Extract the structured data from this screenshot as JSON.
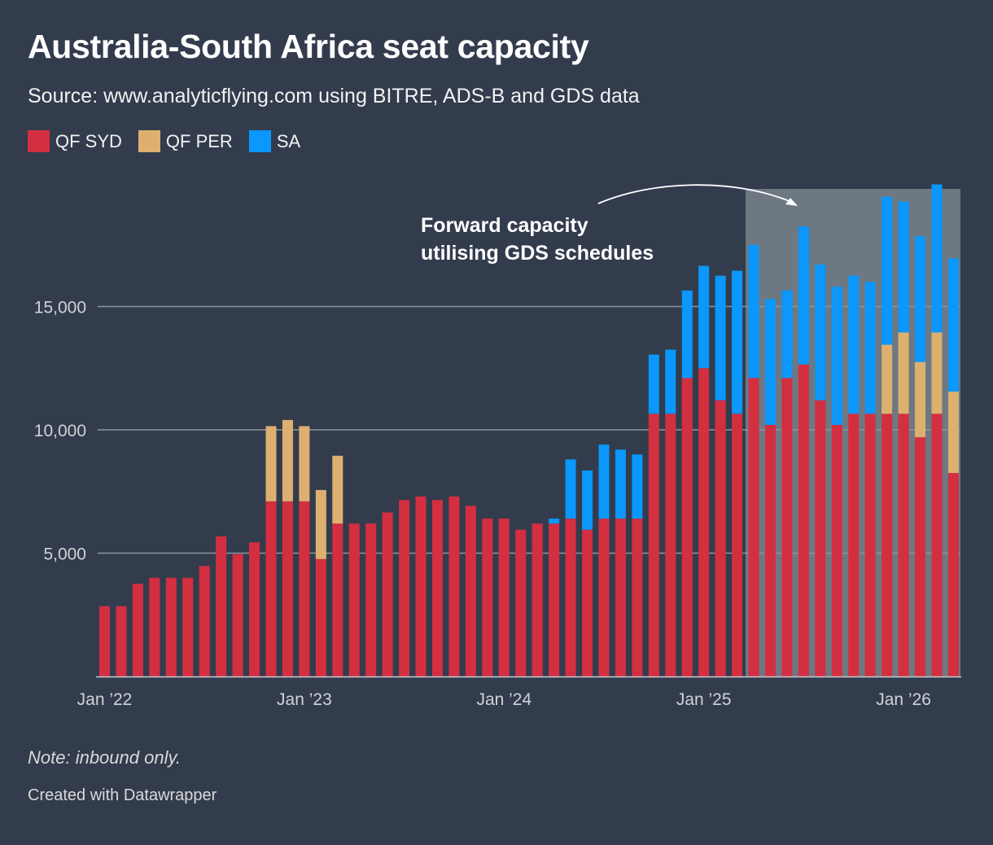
{
  "title": "Australia-South Africa seat capacity",
  "subtitle": "Source: www.analyticflying.com using BITRE, ADS-B and GDS data",
  "note": "Note: inbound only.",
  "credit": "Created with Datawrapper",
  "colors": {
    "background": "#333c4d",
    "qf_syd": "#d42e41",
    "qf_per": "#ddb06f",
    "sa": "#0b97fb",
    "forward_shade": "#6d7882",
    "gridline": "#8e949c",
    "tick_text": "#cfd3d8"
  },
  "chart_data": {
    "type": "bar",
    "stacked": true,
    "legend_placement": "top-left",
    "grid": true,
    "ylim": [
      0,
      20000
    ],
    "y_ticks": [
      5000,
      10000,
      15000
    ],
    "y_tick_labels": [
      "5,000",
      "10,000",
      "15,000"
    ],
    "x_tick_labels": [
      "Jan ’22",
      "Jan ’23",
      "Jan ’24",
      "Jan ’25",
      "Jan ’26"
    ],
    "x_tick_months": [
      "2022-01",
      "2023-01",
      "2024-01",
      "2025-01",
      "2026-01"
    ],
    "categories": [
      "2022-01",
      "2022-02",
      "2022-03",
      "2022-04",
      "2022-05",
      "2022-06",
      "2022-07",
      "2022-08",
      "2022-09",
      "2022-10",
      "2022-11",
      "2022-12",
      "2023-01",
      "2023-02",
      "2023-03",
      "2023-04",
      "2023-05",
      "2023-06",
      "2023-07",
      "2023-08",
      "2023-09",
      "2023-10",
      "2023-11",
      "2023-12",
      "2024-01",
      "2024-02",
      "2024-03",
      "2024-04",
      "2024-05",
      "2024-06",
      "2024-07",
      "2024-08",
      "2024-09",
      "2024-10",
      "2024-11",
      "2024-12",
      "2025-01",
      "2025-02",
      "2025-03",
      "2025-04",
      "2025-05",
      "2025-06",
      "2025-07",
      "2025-08",
      "2025-09",
      "2025-10",
      "2025-11",
      "2025-12",
      "2026-01",
      "2026-02",
      "2026-03",
      "2026-04"
    ],
    "series": [
      {
        "name": "QF SYD",
        "values": [
          2850,
          2850,
          3760,
          4000,
          4000,
          4000,
          4480,
          5680,
          4960,
          5440,
          7100,
          7100,
          7100,
          4760,
          6200,
          6200,
          6200,
          6650,
          7150,
          7300,
          7150,
          7300,
          6920,
          6400,
          6400,
          5950,
          6200,
          6200,
          6400,
          5950,
          6400,
          6400,
          6400,
          10650,
          10650,
          12100,
          12500,
          11200,
          10650,
          12100,
          10200,
          12100,
          12650,
          11200,
          10200,
          10650,
          10650,
          10650,
          10650,
          9700,
          10650,
          8250
        ]
      },
      {
        "name": "QF PER",
        "values": [
          0,
          0,
          0,
          0,
          0,
          0,
          0,
          0,
          0,
          0,
          3050,
          3300,
          3050,
          2800,
          2750,
          0,
          0,
          0,
          0,
          0,
          0,
          0,
          0,
          0,
          0,
          0,
          0,
          0,
          0,
          0,
          0,
          0,
          0,
          0,
          0,
          0,
          0,
          0,
          0,
          0,
          0,
          0,
          0,
          0,
          0,
          0,
          0,
          2800,
          3300,
          3050,
          3300,
          3300
        ]
      },
      {
        "name": "SA",
        "values": [
          0,
          0,
          0,
          0,
          0,
          0,
          0,
          0,
          0,
          0,
          0,
          0,
          0,
          0,
          0,
          0,
          0,
          0,
          0,
          0,
          0,
          0,
          0,
          0,
          0,
          0,
          0,
          200,
          2400,
          2400,
          3000,
          2800,
          2600,
          2400,
          2600,
          3550,
          4150,
          5050,
          5800,
          5400,
          5100,
          3550,
          5600,
          5500,
          5600,
          5600,
          5350,
          6000,
          5300,
          5100,
          6000,
          5400
        ]
      }
    ],
    "annotations": [
      {
        "text_lines": [
          "Forward capacity",
          "utilising GDS schedules"
        ],
        "shaded_from": "2025-04",
        "shaded_to": "2026-04"
      }
    ]
  }
}
